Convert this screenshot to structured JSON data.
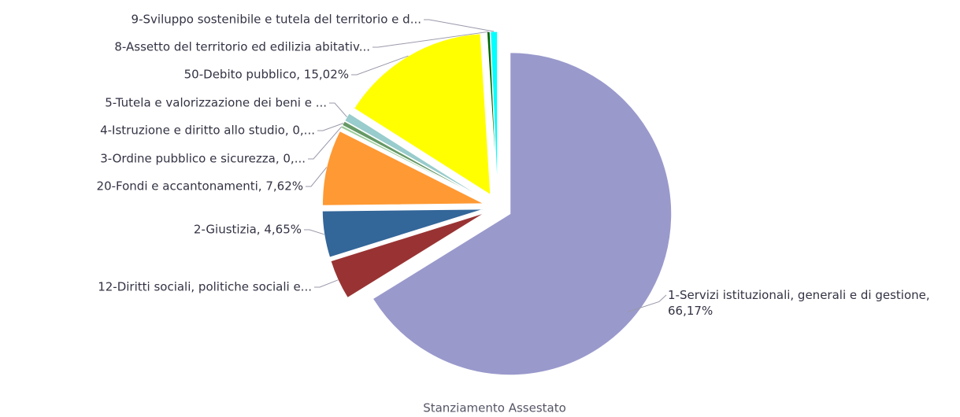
{
  "chart_data": {
    "type": "pie",
    "title": "Stanziamento Assestato",
    "categories": [
      "1-Servizi istituzionali, generali e di gestione, 66,17%",
      "12-Diritti sociali, politiche sociali e...",
      "2-Giustizia, 4,65%",
      "20-Fondi e accantonamenti, 7,62%",
      "3-Ordine pubblico e sicurezza, 0,...",
      "4-Istruzione e diritto allo studio, 0,...",
      "5-Tutela e valorizzazione dei beni e ...",
      "50-Debito pubblico, 15,02%",
      "8-Assetto del territorio ed edilizia abitativ...",
      "9-Sviluppo sostenibile e tutela del territorio e d..."
    ],
    "values": [
      66.17,
      4.0,
      4.65,
      7.62,
      0.25,
      0.45,
      0.85,
      15.02,
      0.3,
      0.69
    ],
    "colors": [
      "#9999cc",
      "#993333",
      "#336699",
      "#ff9933",
      "#99cc99",
      "#669966",
      "#99cccc",
      "#ffff00",
      "#006600",
      "#00ffff"
    ]
  }
}
